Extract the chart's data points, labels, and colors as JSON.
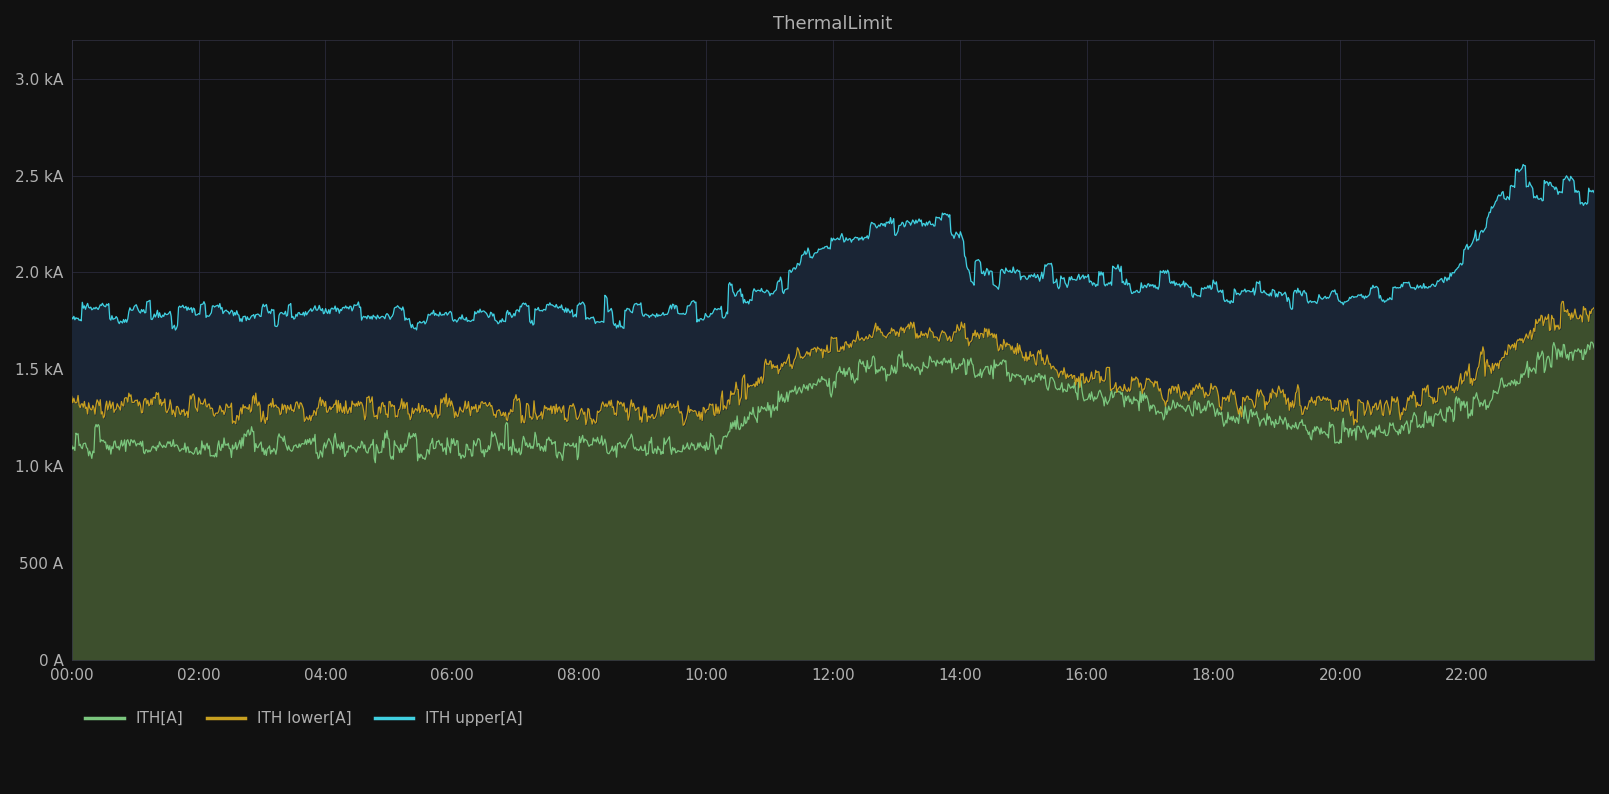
{
  "title": "ThermalLimit",
  "background_color": "#111111",
  "plot_bg_color": "#111111",
  "fill_below_ith_color": "#3d4f2d",
  "fill_upper_band_color": "#1a2535",
  "grid_color": "#2a2a3a",
  "text_color": "#b0b0b0",
  "ith_color": "#7bc67e",
  "ith_lower_color": "#c8a020",
  "ith_upper_color": "#40d0e0",
  "ylim": [
    0,
    3200
  ],
  "yticks": [
    0,
    500,
    1000,
    1500,
    2000,
    2500,
    3000
  ],
  "ytick_labels": [
    "0 A",
    "500 A",
    "1.0 kA",
    "1.5 kA",
    "2.0 kA",
    "2.5 kA",
    "3.0 kA"
  ],
  "num_points": 1440,
  "legend_labels": [
    "ITH[A]",
    "ITH lower[A]",
    "ITH upper[A]"
  ]
}
